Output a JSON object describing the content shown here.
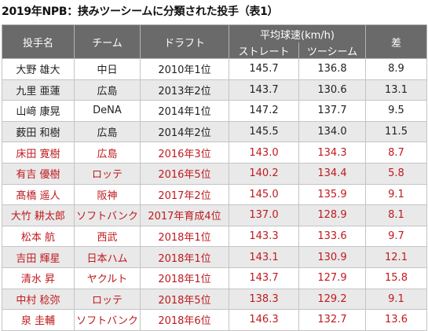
{
  "title": "2019年NPB：挟みツーシームに分類された投手（表1）",
  "headers": {
    "name": "投手名",
    "team": "チーム",
    "draft": "ドラフト",
    "velocity_group": "平均球速(km/h)",
    "straight": "ストレート",
    "twoseam": "ツーシーム",
    "diff": "差"
  },
  "colors": {
    "header_bg": "#6a6a6a",
    "highlight_text": "#c0191e"
  },
  "rows": [
    {
      "name": "大野 雄大",
      "team": "中日",
      "draft": "2010年1位",
      "straight": "145.7",
      "twoseam": "136.8",
      "diff": "8.9",
      "highlight": false
    },
    {
      "name": "九里 亜蓮",
      "team": "広島",
      "draft": "2013年2位",
      "straight": "143.7",
      "twoseam": "130.6",
      "diff": "13.1",
      "highlight": false
    },
    {
      "name": "山﨑 康晃",
      "team": "DeNA",
      "draft": "2014年1位",
      "straight": "147.2",
      "twoseam": "137.7",
      "diff": "9.5",
      "highlight": false
    },
    {
      "name": "薮田 和樹",
      "team": "広島",
      "draft": "2014年2位",
      "straight": "145.5",
      "twoseam": "134.0",
      "diff": "11.5",
      "highlight": false
    },
    {
      "name": "床田 寛樹",
      "team": "広島",
      "draft": "2016年3位",
      "straight": "143.0",
      "twoseam": "134.3",
      "diff": "8.7",
      "highlight": true
    },
    {
      "name": "有吉 優樹",
      "team": "ロッテ",
      "draft": "2016年5位",
      "straight": "140.2",
      "twoseam": "134.4",
      "diff": "5.8",
      "highlight": true
    },
    {
      "name": "髙橋 遥人",
      "team": "阪神",
      "draft": "2017年2位",
      "straight": "145.0",
      "twoseam": "135.9",
      "diff": "9.1",
      "highlight": true
    },
    {
      "name": "大竹 耕太郎",
      "team": "ソフトバンク",
      "draft": "2017年育成4位",
      "straight": "137.0",
      "twoseam": "128.9",
      "diff": "8.1",
      "highlight": true
    },
    {
      "name": "松本 航",
      "team": "西武",
      "draft": "2018年1位",
      "straight": "143.3",
      "twoseam": "133.6",
      "diff": "9.7",
      "highlight": true
    },
    {
      "name": "吉田 輝星",
      "team": "日本ハム",
      "draft": "2018年1位",
      "straight": "143.1",
      "twoseam": "130.9",
      "diff": "12.1",
      "highlight": true
    },
    {
      "name": "清水 昇",
      "team": "ヤクルト",
      "draft": "2018年1位",
      "straight": "143.7",
      "twoseam": "127.9",
      "diff": "15.8",
      "highlight": true
    },
    {
      "name": "中村 稔弥",
      "team": "ロッテ",
      "draft": "2018年5位",
      "straight": "138.3",
      "twoseam": "129.2",
      "diff": "9.1",
      "highlight": true
    },
    {
      "name": "泉 圭輔",
      "team": "ソフトバンク",
      "draft": "2018年6位",
      "straight": "146.3",
      "twoseam": "132.7",
      "diff": "13.6",
      "highlight": true
    }
  ]
}
